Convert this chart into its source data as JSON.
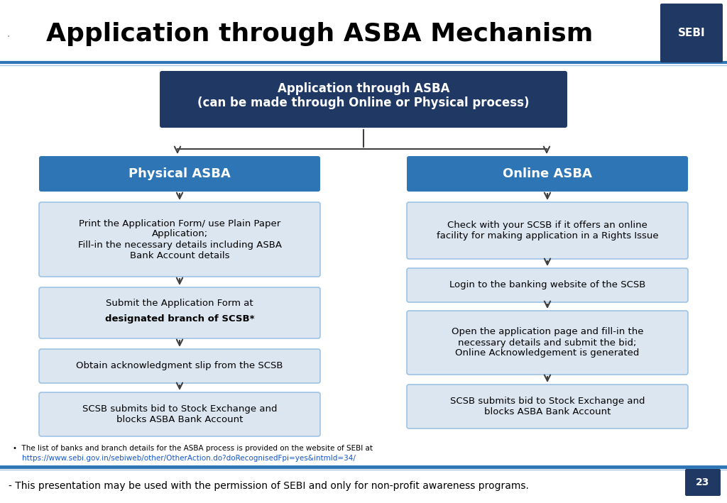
{
  "title": "Application through ASBA Mechanism",
  "title_fontsize": 26,
  "background_color": "#ffffff",
  "top_line_color": "#2e75b6",
  "bottom_line_color": "#2e75b6",
  "dark_box_color": "#1f3864",
  "header_box_color": "#2e75b6",
  "light_box_color": "#dce6f1",
  "light_box_edge_color": "#9dc3e6",
  "arrow_color": "#404040",
  "top_box_text": "Application through ASBA\n(can be made through Online or Physical process)",
  "physical_header_text": "Physical ASBA",
  "online_header_text": "Online ASBA",
  "physical_box1": "Print the Application Form/ use Plain Paper\nApplication;\nFill-in the necessary details including ASBA\nBank Account details",
  "physical_box2_normal": "Submit the Application Form at ",
  "physical_box2_bold": "designated\nbranch of SCSB*",
  "physical_box3": "Obtain acknowledgment slip from the SCSB",
  "physical_box4": "SCSB submits bid to Stock Exchange and\nblocks ASBA Bank Account",
  "online_box1": "Check with your SCSB if it offers an online\nfacility for making application in a Rights Issue",
  "online_box2": "Login to the banking website of the SCSB",
  "online_box3": "Open the application page and fill-in the\nnecessary details and submit the bid;\nOnline Acknowledgement is generated",
  "online_box4": "SCSB submits bid to Stock Exchange and\nblocks ASBA Bank Account",
  "footer_line1": "•  The list of banks and branch details for the ASBA process is provided on the website of SEBI at",
  "footer_link": "    https://www.sebi.gov.in/sebiweb/other/OtherAction.do?doRecognisedFpi=yes&intmId=34/",
  "bottom_text": "- This presentation may be used with the permission of SEBI and only for non-profit awareness programs.",
  "page_number": "23"
}
